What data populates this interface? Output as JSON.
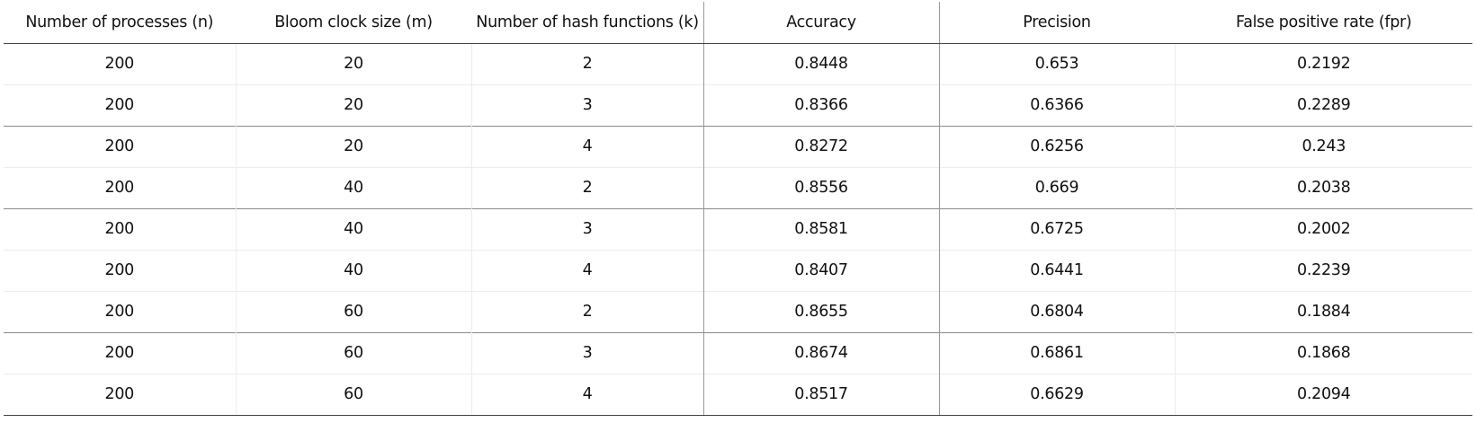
{
  "table": {
    "columns": [
      "Number of processes (n)",
      "Bloom clock size (m)",
      "Number of hash functions (k)",
      "Accuracy",
      "Precision",
      "False positive rate (fpr)"
    ],
    "rows": [
      [
        "200",
        "20",
        "2",
        "0.8448",
        "0.653",
        "0.2192"
      ],
      [
        "200",
        "20",
        "3",
        "0.8366",
        "0.6366",
        "0.2289"
      ],
      [
        "200",
        "20",
        "4",
        "0.8272",
        "0.6256",
        "0.243"
      ],
      [
        "200",
        "40",
        "2",
        "0.8556",
        "0.669",
        "0.2038"
      ],
      [
        "200",
        "40",
        "3",
        "0.8581",
        "0.6725",
        "0.2002"
      ],
      [
        "200",
        "40",
        "4",
        "0.8407",
        "0.6441",
        "0.2239"
      ],
      [
        "200",
        "60",
        "2",
        "0.8655",
        "0.6804",
        "0.1884"
      ],
      [
        "200",
        "60",
        "3",
        "0.8674",
        "0.6861",
        "0.1868"
      ],
      [
        "200",
        "60",
        "4",
        "0.8517",
        "0.6629",
        "0.2094"
      ]
    ]
  }
}
